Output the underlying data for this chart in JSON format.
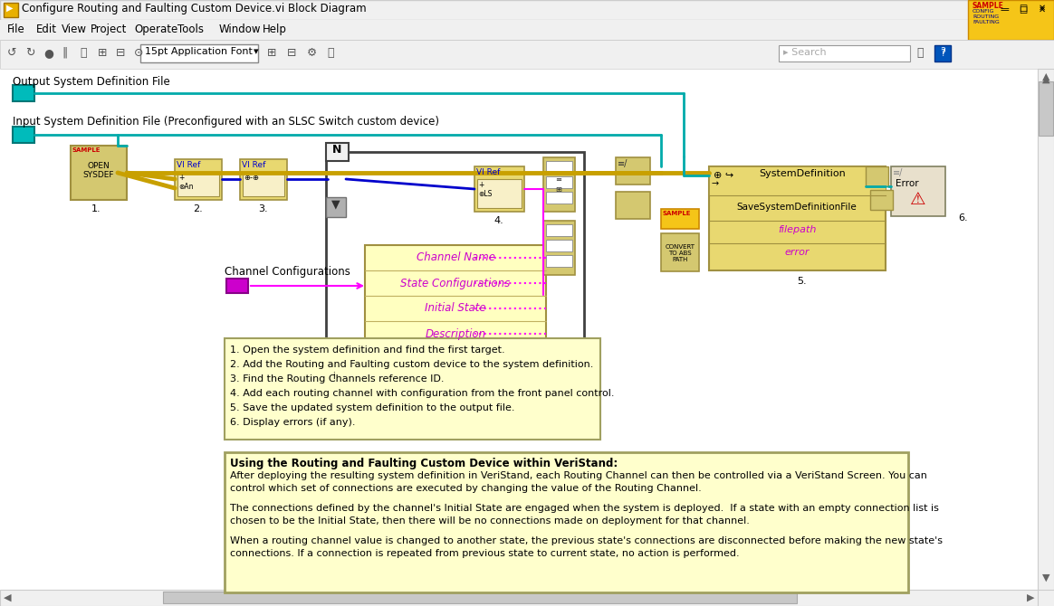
{
  "title_bar": "Configure Routing and Faulting Custom Device.vi Block Diagram",
  "menu_items": [
    "File",
    "Edit",
    "View",
    "Project",
    "Operate",
    "Tools",
    "Window",
    "Help"
  ],
  "menu_x": [
    8,
    40,
    68,
    100,
    148,
    196,
    242,
    290
  ],
  "output_label": "Output System Definition File",
  "input_label": "Input System Definition File (Preconfigured with an SLSC Switch custom device)",
  "channel_config_label": "Channel Configurations",
  "step_box_text": [
    "1. Open the system definition and find the first target.",
    "2. Add the Routing and Faulting custom device to the system definition.",
    "3. Find the Routing Channels reference ID.",
    "4. Add each routing channel with configuration from the front panel control.",
    "5. Save the updated system definition to the output file.",
    "6. Display errors (if any)."
  ],
  "info_box_title": "Using the Routing and Faulting Custom Device within VeriStand:",
  "info_box_lines": [
    "After deploying the resulting system definition in VeriStand, each Routing Channel can then be controlled via a VeriStand Screen. You can",
    "control which set of connections are executed by changing the value of the Routing Channel.",
    "",
    "The connections defined by the channel's Initial State are engaged when the system is deployed.  If a state with an empty connection list is",
    "chosen to be the Initial State, then there will be no connections made on deployment for that channel.",
    "",
    "When a routing channel value is changed to another state, the previous state's connections are disconnected before making the new state's",
    "connections. If a connection is repeated from previous state to current state, no action is performed."
  ],
  "channel_box_items": [
    "Channel Name",
    "State Configurations",
    "Initial State",
    "Description"
  ],
  "teal": "#00aaaa",
  "pink": "#ff00ff",
  "blue": "#0000cc",
  "gold": "#c8a000",
  "step_box_bg": "#ffffcc",
  "info_box_bg": "#ffffcc",
  "win_bg": "#f0f0f0",
  "diagram_bg": "#ffffff",
  "titlebar_bg": "#f0f0f0"
}
